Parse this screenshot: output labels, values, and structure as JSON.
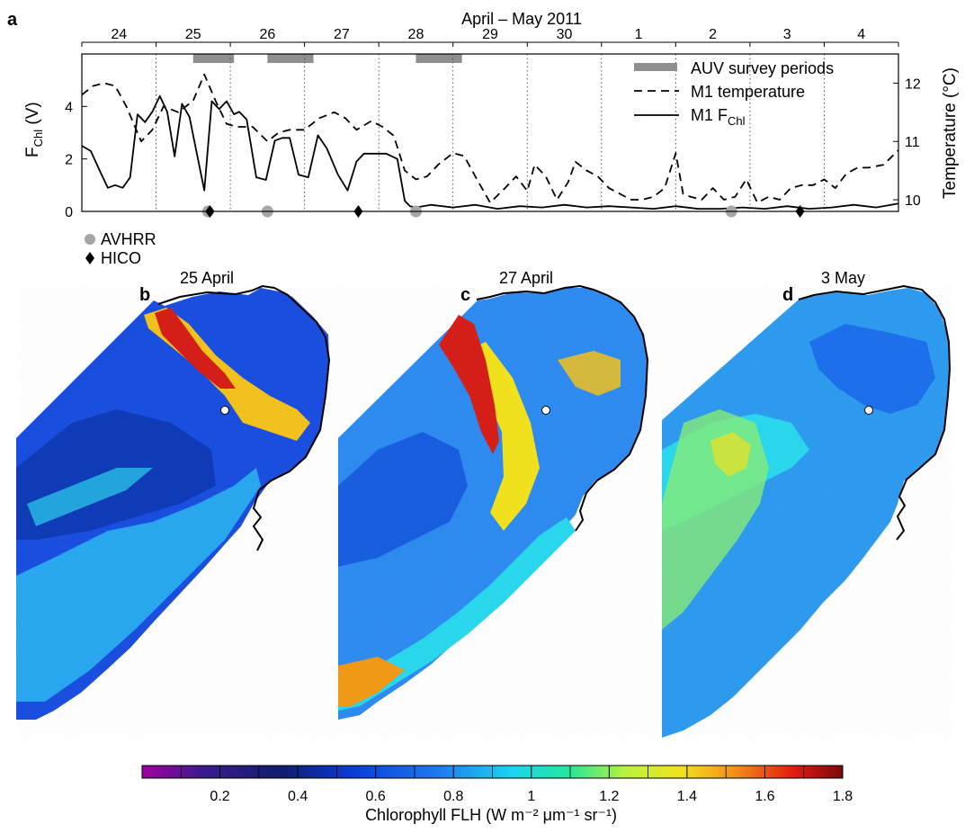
{
  "chart_data": [
    {
      "panel": "a",
      "type": "line",
      "title": "April – May 2011",
      "top_axis_ticks": [
        "24",
        "25",
        "26",
        "27",
        "28",
        "29",
        "30",
        "1",
        "2",
        "3",
        "4"
      ],
      "x_range_days": [
        23.5,
        34.5
      ],
      "left_axis": {
        "label_main": "F",
        "label_sub": "Chl",
        "label_unit": " (V)",
        "ticks": [
          "0",
          "2",
          "4"
        ],
        "ylim": [
          0,
          6
        ]
      },
      "right_axis": {
        "label": "Temperature (°C)",
        "ticks": [
          "10",
          "11",
          "12"
        ],
        "ylim": [
          9.8,
          12.5
        ]
      },
      "legend": {
        "position": "top-right",
        "auv": "AUV survey periods",
        "temp": "M1 temperature",
        "fchl_main": "M1 F",
        "fchl_sub": "Chl"
      },
      "auv_periods": [
        [
          25.0,
          25.55
        ],
        [
          26.0,
          26.62
        ],
        [
          28.0,
          28.62
        ]
      ],
      "series": [
        {
          "name": "M1 temperature",
          "style": "dashed",
          "x": [
            23.5,
            23.65,
            23.8,
            23.95,
            24.1,
            24.3,
            24.45,
            24.6,
            24.8,
            25.0,
            25.15,
            25.3,
            25.45,
            25.6,
            25.8,
            26.0,
            26.15,
            26.3,
            26.5,
            26.7,
            26.9,
            27.05,
            27.2,
            27.4,
            27.55,
            27.7,
            27.85,
            28.0,
            28.15,
            28.3,
            28.5,
            28.65,
            28.8,
            29.0,
            29.2,
            29.35,
            29.5,
            29.6,
            29.75,
            29.9,
            30.05,
            30.15,
            30.3,
            30.45,
            30.6,
            30.75,
            30.9,
            31.05,
            31.2,
            31.35,
            31.5,
            31.6,
            31.7,
            31.85,
            32.0,
            32.15,
            32.3,
            32.45,
            32.6,
            32.75,
            32.9,
            33.05,
            33.2,
            33.35,
            33.5,
            33.65,
            33.8,
            33.95,
            34.1,
            34.3,
            34.5
          ],
          "y": [
            11.8,
            11.95,
            12.0,
            11.95,
            11.6,
            11.0,
            11.2,
            11.6,
            11.5,
            11.7,
            12.15,
            11.7,
            11.3,
            11.25,
            11.25,
            11.0,
            11.15,
            11.2,
            11.2,
            11.4,
            11.5,
            11.4,
            11.2,
            11.35,
            11.25,
            11.1,
            10.5,
            10.35,
            10.4,
            10.6,
            10.8,
            10.75,
            10.4,
            9.95,
            10.2,
            10.4,
            10.15,
            10.6,
            10.4,
            10.0,
            10.3,
            10.65,
            10.5,
            10.4,
            10.2,
            10.1,
            10.0,
            10.0,
            10.05,
            10.2,
            10.8,
            10.1,
            10.05,
            10.0,
            10.2,
            10.0,
            10.05,
            10.35,
            9.95,
            10.05,
            10.0,
            10.2,
            10.25,
            10.25,
            10.35,
            10.2,
            10.45,
            10.55,
            10.55,
            10.6,
            10.85
          ]
        },
        {
          "name": "M1 FChl",
          "style": "solid",
          "x": [
            23.5,
            23.62,
            23.75,
            23.85,
            23.95,
            24.05,
            24.15,
            24.25,
            24.35,
            24.45,
            24.55,
            24.65,
            24.75,
            24.85,
            24.95,
            25.05,
            25.15,
            25.25,
            25.35,
            25.45,
            25.55,
            25.62,
            25.72,
            25.85,
            25.98,
            26.1,
            26.2,
            26.3,
            26.42,
            26.55,
            26.68,
            26.8,
            26.95,
            27.08,
            27.2,
            27.3,
            27.45,
            27.6,
            27.75,
            27.85,
            27.92,
            28.0,
            28.2,
            28.5,
            28.8,
            29.1,
            29.4,
            29.7,
            30.0,
            30.3,
            30.6,
            30.9,
            31.2,
            31.5,
            31.8,
            32.1,
            32.4,
            32.7,
            33.0,
            33.3,
            33.6,
            33.9,
            34.2,
            34.5
          ],
          "y": [
            2.5,
            2.3,
            1.5,
            0.9,
            1.0,
            0.9,
            1.3,
            3.7,
            3.4,
            3.8,
            4.4,
            3.8,
            2.1,
            4.1,
            3.6,
            2.2,
            0.8,
            4.2,
            3.9,
            4.2,
            3.7,
            3.8,
            3.5,
            1.3,
            1.2,
            2.7,
            2.8,
            2.8,
            1.4,
            1.3,
            2.9,
            2.4,
            1.4,
            0.8,
            1.9,
            2.2,
            2.2,
            2.2,
            2.0,
            0.4,
            0.2,
            0.15,
            0.25,
            0.15,
            0.25,
            0.1,
            0.2,
            0.15,
            0.25,
            0.15,
            0.2,
            0.15,
            0.1,
            0.2,
            0.1,
            0.1,
            0.15,
            0.1,
            0.2,
            0.1,
            0.15,
            0.25,
            0.15,
            0.3
          ]
        }
      ],
      "markers": {
        "avhrr": {
          "label": "AVHRR",
          "x": [
            25.2,
            26.0,
            28.0,
            32.25
          ]
        },
        "hico": {
          "label": "HICO",
          "x": [
            25.2,
            27.2,
            33.15
          ]
        }
      },
      "vertical_gridlines": "dotted, day boundaries",
      "colors": {
        "auv": "#8f8f8f",
        "avhrr": "#a6a6a6",
        "line": "#000000"
      }
    },
    {
      "panel": "b-d",
      "type": "heatmap",
      "maps": [
        {
          "letter": "b",
          "title": "25 April"
        },
        {
          "letter": "c",
          "title": "27 April"
        },
        {
          "letter": "d",
          "title": "3 May"
        }
      ],
      "colorbar": {
        "ticks": [
          "0.2",
          "0.4",
          "0.6",
          "0.8",
          "1",
          "1.2",
          "1.4",
          "1.6",
          "1.8"
        ],
        "tick_values": [
          0.2,
          0.4,
          0.6,
          0.8,
          1.0,
          1.2,
          1.4,
          1.6,
          1.8
        ],
        "range": [
          0.0,
          1.8
        ],
        "label": "Chlorophyll FLH (W m⁻² μm⁻¹ sr⁻¹)",
        "colors": [
          "#a000a0",
          "#3a1c8c",
          "#101d6e",
          "#0a3cd6",
          "#1e78f0",
          "#1ad6f0",
          "#26e69a",
          "#b8f23c",
          "#f2e21e",
          "#f28a18",
          "#e21a10",
          "#7a0a0a"
        ]
      }
    }
  ]
}
